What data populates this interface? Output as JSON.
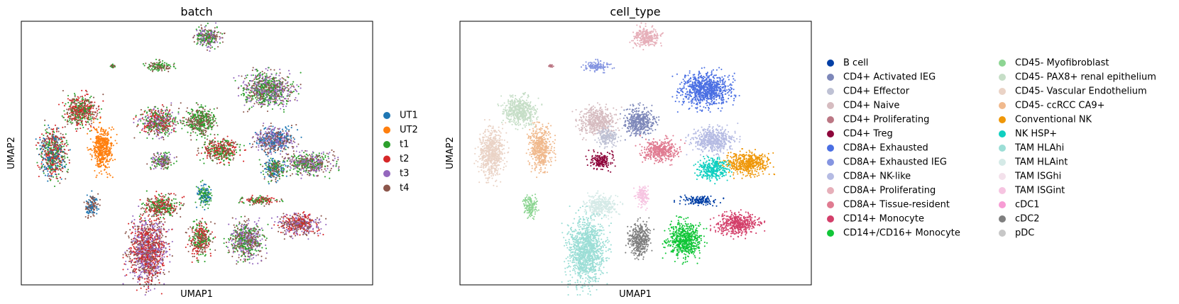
{
  "chart_data": [
    {
      "type": "scatter",
      "title": "batch",
      "xlabel": "UMAP1",
      "ylabel": "UMAP2",
      "grid": false,
      "legend_position": "right",
      "legend": [
        {
          "name": "UT1",
          "color": "#1f77b4"
        },
        {
          "name": "UT2",
          "color": "#ff7f0e"
        },
        {
          "name": "t1",
          "color": "#2ca02c"
        },
        {
          "name": "t2",
          "color": "#d62728"
        },
        {
          "name": "t3",
          "color": "#9467bd"
        },
        {
          "name": "t4",
          "color": "#8c564b"
        }
      ],
      "clusters": [
        {
          "x": 0.53,
          "y": 0.94,
          "rx": 0.035,
          "ry": 0.038,
          "mix": [
            "#2ca02c",
            "#8c564b",
            "#9467bd"
          ]
        },
        {
          "x": 0.39,
          "y": 0.83,
          "rx": 0.035,
          "ry": 0.018,
          "mix": [
            "#2ca02c",
            "#8c564b"
          ]
        },
        {
          "x": 0.26,
          "y": 0.83,
          "rx": 0.006,
          "ry": 0.006,
          "mix": [
            "#2ca02c",
            "#8c564b"
          ]
        },
        {
          "x": 0.7,
          "y": 0.74,
          "rx": 0.068,
          "ry": 0.06,
          "mix": [
            "#9467bd",
            "#8c564b",
            "#2ca02c"
          ]
        },
        {
          "x": 0.17,
          "y": 0.66,
          "rx": 0.045,
          "ry": 0.055,
          "mix": [
            "#d62728",
            "#8c564b",
            "#2ca02c"
          ]
        },
        {
          "x": 0.39,
          "y": 0.62,
          "rx": 0.05,
          "ry": 0.05,
          "mix": [
            "#8c564b",
            "#2ca02c",
            "#d62728",
            "#9467bd"
          ]
        },
        {
          "x": 0.51,
          "y": 0.62,
          "rx": 0.04,
          "ry": 0.05,
          "mix": [
            "#2ca02c",
            "#8c564b"
          ]
        },
        {
          "x": 0.57,
          "y": 0.51,
          "rx": 0.05,
          "ry": 0.04,
          "mix": [
            "#8c564b",
            "#d62728",
            "#2ca02c"
          ]
        },
        {
          "x": 0.72,
          "y": 0.55,
          "rx": 0.055,
          "ry": 0.045,
          "mix": [
            "#9467bd",
            "#8c564b",
            "#1f77b4"
          ]
        },
        {
          "x": 0.82,
          "y": 0.46,
          "rx": 0.06,
          "ry": 0.04,
          "mix": [
            "#8c564b",
            "#2ca02c",
            "#9467bd"
          ]
        },
        {
          "x": 0.09,
          "y": 0.5,
          "rx": 0.035,
          "ry": 0.09,
          "mix": [
            "#1f77b4",
            "#8c564b",
            "#2ca02c",
            "#d62728"
          ]
        },
        {
          "x": 0.23,
          "y": 0.52,
          "rx": 0.03,
          "ry": 0.08,
          "mix": [
            "#ff7f0e"
          ]
        },
        {
          "x": 0.4,
          "y": 0.47,
          "rx": 0.03,
          "ry": 0.03,
          "mix": [
            "#9467bd",
            "#8c564b",
            "#2ca02c"
          ]
        },
        {
          "x": 0.72,
          "y": 0.44,
          "rx": 0.03,
          "ry": 0.04,
          "mix": [
            "#1f77b4",
            "#2ca02c",
            "#8c564b"
          ]
        },
        {
          "x": 0.2,
          "y": 0.3,
          "rx": 0.018,
          "ry": 0.04,
          "mix": [
            "#1f77b4",
            "#8c564b"
          ]
        },
        {
          "x": 0.4,
          "y": 0.3,
          "rx": 0.045,
          "ry": 0.04,
          "mix": [
            "#d62728",
            "#8c564b",
            "#2ca02c"
          ]
        },
        {
          "x": 0.52,
          "y": 0.34,
          "rx": 0.02,
          "ry": 0.04,
          "mix": [
            "#1f77b4",
            "#2ca02c"
          ]
        },
        {
          "x": 0.68,
          "y": 0.32,
          "rx": 0.05,
          "ry": 0.015,
          "mix": [
            "#2ca02c",
            "#d62728",
            "#8c564b"
          ]
        },
        {
          "x": 0.36,
          "y": 0.13,
          "rx": 0.05,
          "ry": 0.12,
          "mix": [
            "#d62728",
            "#9467bd",
            "#8c564b"
          ]
        },
        {
          "x": 0.51,
          "y": 0.17,
          "rx": 0.03,
          "ry": 0.06,
          "mix": [
            "#8c564b",
            "#2ca02c",
            "#d62728"
          ]
        },
        {
          "x": 0.64,
          "y": 0.17,
          "rx": 0.045,
          "ry": 0.065,
          "mix": [
            "#8c564b",
            "#9467bd",
            "#2ca02c"
          ]
        },
        {
          "x": 0.79,
          "y": 0.23,
          "rx": 0.055,
          "ry": 0.04,
          "mix": [
            "#8c564b",
            "#d62728",
            "#9467bd"
          ]
        }
      ]
    },
    {
      "type": "scatter",
      "title": "cell_type",
      "xlabel": "UMAP1",
      "ylabel": "UMAP2",
      "grid": false,
      "legend_position": "right",
      "legend": [
        {
          "name": "B cell",
          "color": "#023fa5"
        },
        {
          "name": "CD4+ Activated IEG",
          "color": "#7d87b9"
        },
        {
          "name": "CD4+ Effector",
          "color": "#bec1d4"
        },
        {
          "name": "CD4+ Naive",
          "color": "#d6bcc0"
        },
        {
          "name": "CD4+ Proliferating",
          "color": "#bb7784"
        },
        {
          "name": "CD4+ Treg",
          "color": "#8e063b"
        },
        {
          "name": "CD8A+ Exhausted",
          "color": "#4a6fe3"
        },
        {
          "name": "CD8A+ Exhausted IEG",
          "color": "#8595e1"
        },
        {
          "name": "CD8A+ NK-like",
          "color": "#b5bbe3"
        },
        {
          "name": "CD8A+ Proliferating",
          "color": "#e6afb9"
        },
        {
          "name": "CD8A+ Tissue-resident",
          "color": "#e07b91"
        },
        {
          "name": "CD14+ Monocyte",
          "color": "#d33f6a"
        },
        {
          "name": "CD14+/CD16+ Monocyte",
          "color": "#11c638"
        },
        {
          "name": "CD45- Myofibroblast",
          "color": "#8dd593"
        },
        {
          "name": "CD45- PAX8+ renal epithelium",
          "color": "#c6dec7"
        },
        {
          "name": "CD45- Vascular Endothelium",
          "color": "#ead3c6"
        },
        {
          "name": "CD45- ccRCC CA9+",
          "color": "#f0b98d"
        },
        {
          "name": "Conventional NK",
          "color": "#ef9708"
        },
        {
          "name": "NK HSP+",
          "color": "#0fcfc0"
        },
        {
          "name": "TAM HLAhi",
          "color": "#9cded6"
        },
        {
          "name": "TAM HLAint",
          "color": "#d5eae7"
        },
        {
          "name": "TAM ISGhi",
          "color": "#f3e1eb"
        },
        {
          "name": "TAM ISGint",
          "color": "#f6c4e1"
        },
        {
          "name": "cDC1",
          "color": "#f79cd4"
        },
        {
          "name": "cDC2",
          "color": "#7f7f7f"
        },
        {
          "name": "pDC",
          "color": "#c7c7c7"
        }
      ],
      "clusters": [
        {
          "x": 0.53,
          "y": 0.94,
          "rx": 0.035,
          "ry": 0.038,
          "mix": [
            "#e6afb9"
          ]
        },
        {
          "x": 0.39,
          "y": 0.83,
          "rx": 0.035,
          "ry": 0.018,
          "mix": [
            "#8595e1"
          ]
        },
        {
          "x": 0.26,
          "y": 0.83,
          "rx": 0.006,
          "ry": 0.006,
          "mix": [
            "#bb7784"
          ]
        },
        {
          "x": 0.7,
          "y": 0.74,
          "rx": 0.068,
          "ry": 0.06,
          "mix": [
            "#4a6fe3"
          ]
        },
        {
          "x": 0.17,
          "y": 0.66,
          "rx": 0.045,
          "ry": 0.055,
          "mix": [
            "#c6dec7"
          ]
        },
        {
          "x": 0.39,
          "y": 0.62,
          "rx": 0.05,
          "ry": 0.05,
          "mix": [
            "#d6bcc0"
          ]
        },
        {
          "x": 0.51,
          "y": 0.62,
          "rx": 0.04,
          "ry": 0.05,
          "mix": [
            "#7d87b9"
          ]
        },
        {
          "x": 0.42,
          "y": 0.56,
          "rx": 0.03,
          "ry": 0.03,
          "mix": [
            "#bec1d4"
          ]
        },
        {
          "x": 0.57,
          "y": 0.51,
          "rx": 0.05,
          "ry": 0.04,
          "mix": [
            "#e07b91"
          ]
        },
        {
          "x": 0.72,
          "y": 0.55,
          "rx": 0.055,
          "ry": 0.045,
          "mix": [
            "#b5bbe3"
          ]
        },
        {
          "x": 0.82,
          "y": 0.46,
          "rx": 0.06,
          "ry": 0.04,
          "mix": [
            "#ef9708"
          ]
        },
        {
          "x": 0.09,
          "y": 0.5,
          "rx": 0.035,
          "ry": 0.09,
          "mix": [
            "#ead3c6"
          ]
        },
        {
          "x": 0.23,
          "y": 0.52,
          "rx": 0.03,
          "ry": 0.08,
          "mix": [
            "#f0b98d"
          ]
        },
        {
          "x": 0.4,
          "y": 0.47,
          "rx": 0.03,
          "ry": 0.03,
          "mix": [
            "#8e063b"
          ]
        },
        {
          "x": 0.72,
          "y": 0.44,
          "rx": 0.04,
          "ry": 0.04,
          "mix": [
            "#0fcfc0"
          ]
        },
        {
          "x": 0.2,
          "y": 0.3,
          "rx": 0.018,
          "ry": 0.04,
          "mix": [
            "#8dd593"
          ]
        },
        {
          "x": 0.4,
          "y": 0.3,
          "rx": 0.045,
          "ry": 0.04,
          "mix": [
            "#d5eae7"
          ]
        },
        {
          "x": 0.52,
          "y": 0.34,
          "rx": 0.018,
          "ry": 0.04,
          "mix": [
            "#f6c4e1"
          ]
        },
        {
          "x": 0.68,
          "y": 0.32,
          "rx": 0.05,
          "ry": 0.015,
          "mix": [
            "#023fa5"
          ]
        },
        {
          "x": 0.36,
          "y": 0.13,
          "rx": 0.05,
          "ry": 0.12,
          "mix": [
            "#9cded6"
          ]
        },
        {
          "x": 0.51,
          "y": 0.17,
          "rx": 0.03,
          "ry": 0.06,
          "mix": [
            "#7f7f7f"
          ]
        },
        {
          "x": 0.64,
          "y": 0.17,
          "rx": 0.045,
          "ry": 0.065,
          "mix": [
            "#11c638"
          ]
        },
        {
          "x": 0.79,
          "y": 0.23,
          "rx": 0.055,
          "ry": 0.04,
          "mix": [
            "#d33f6a"
          ]
        }
      ]
    }
  ]
}
